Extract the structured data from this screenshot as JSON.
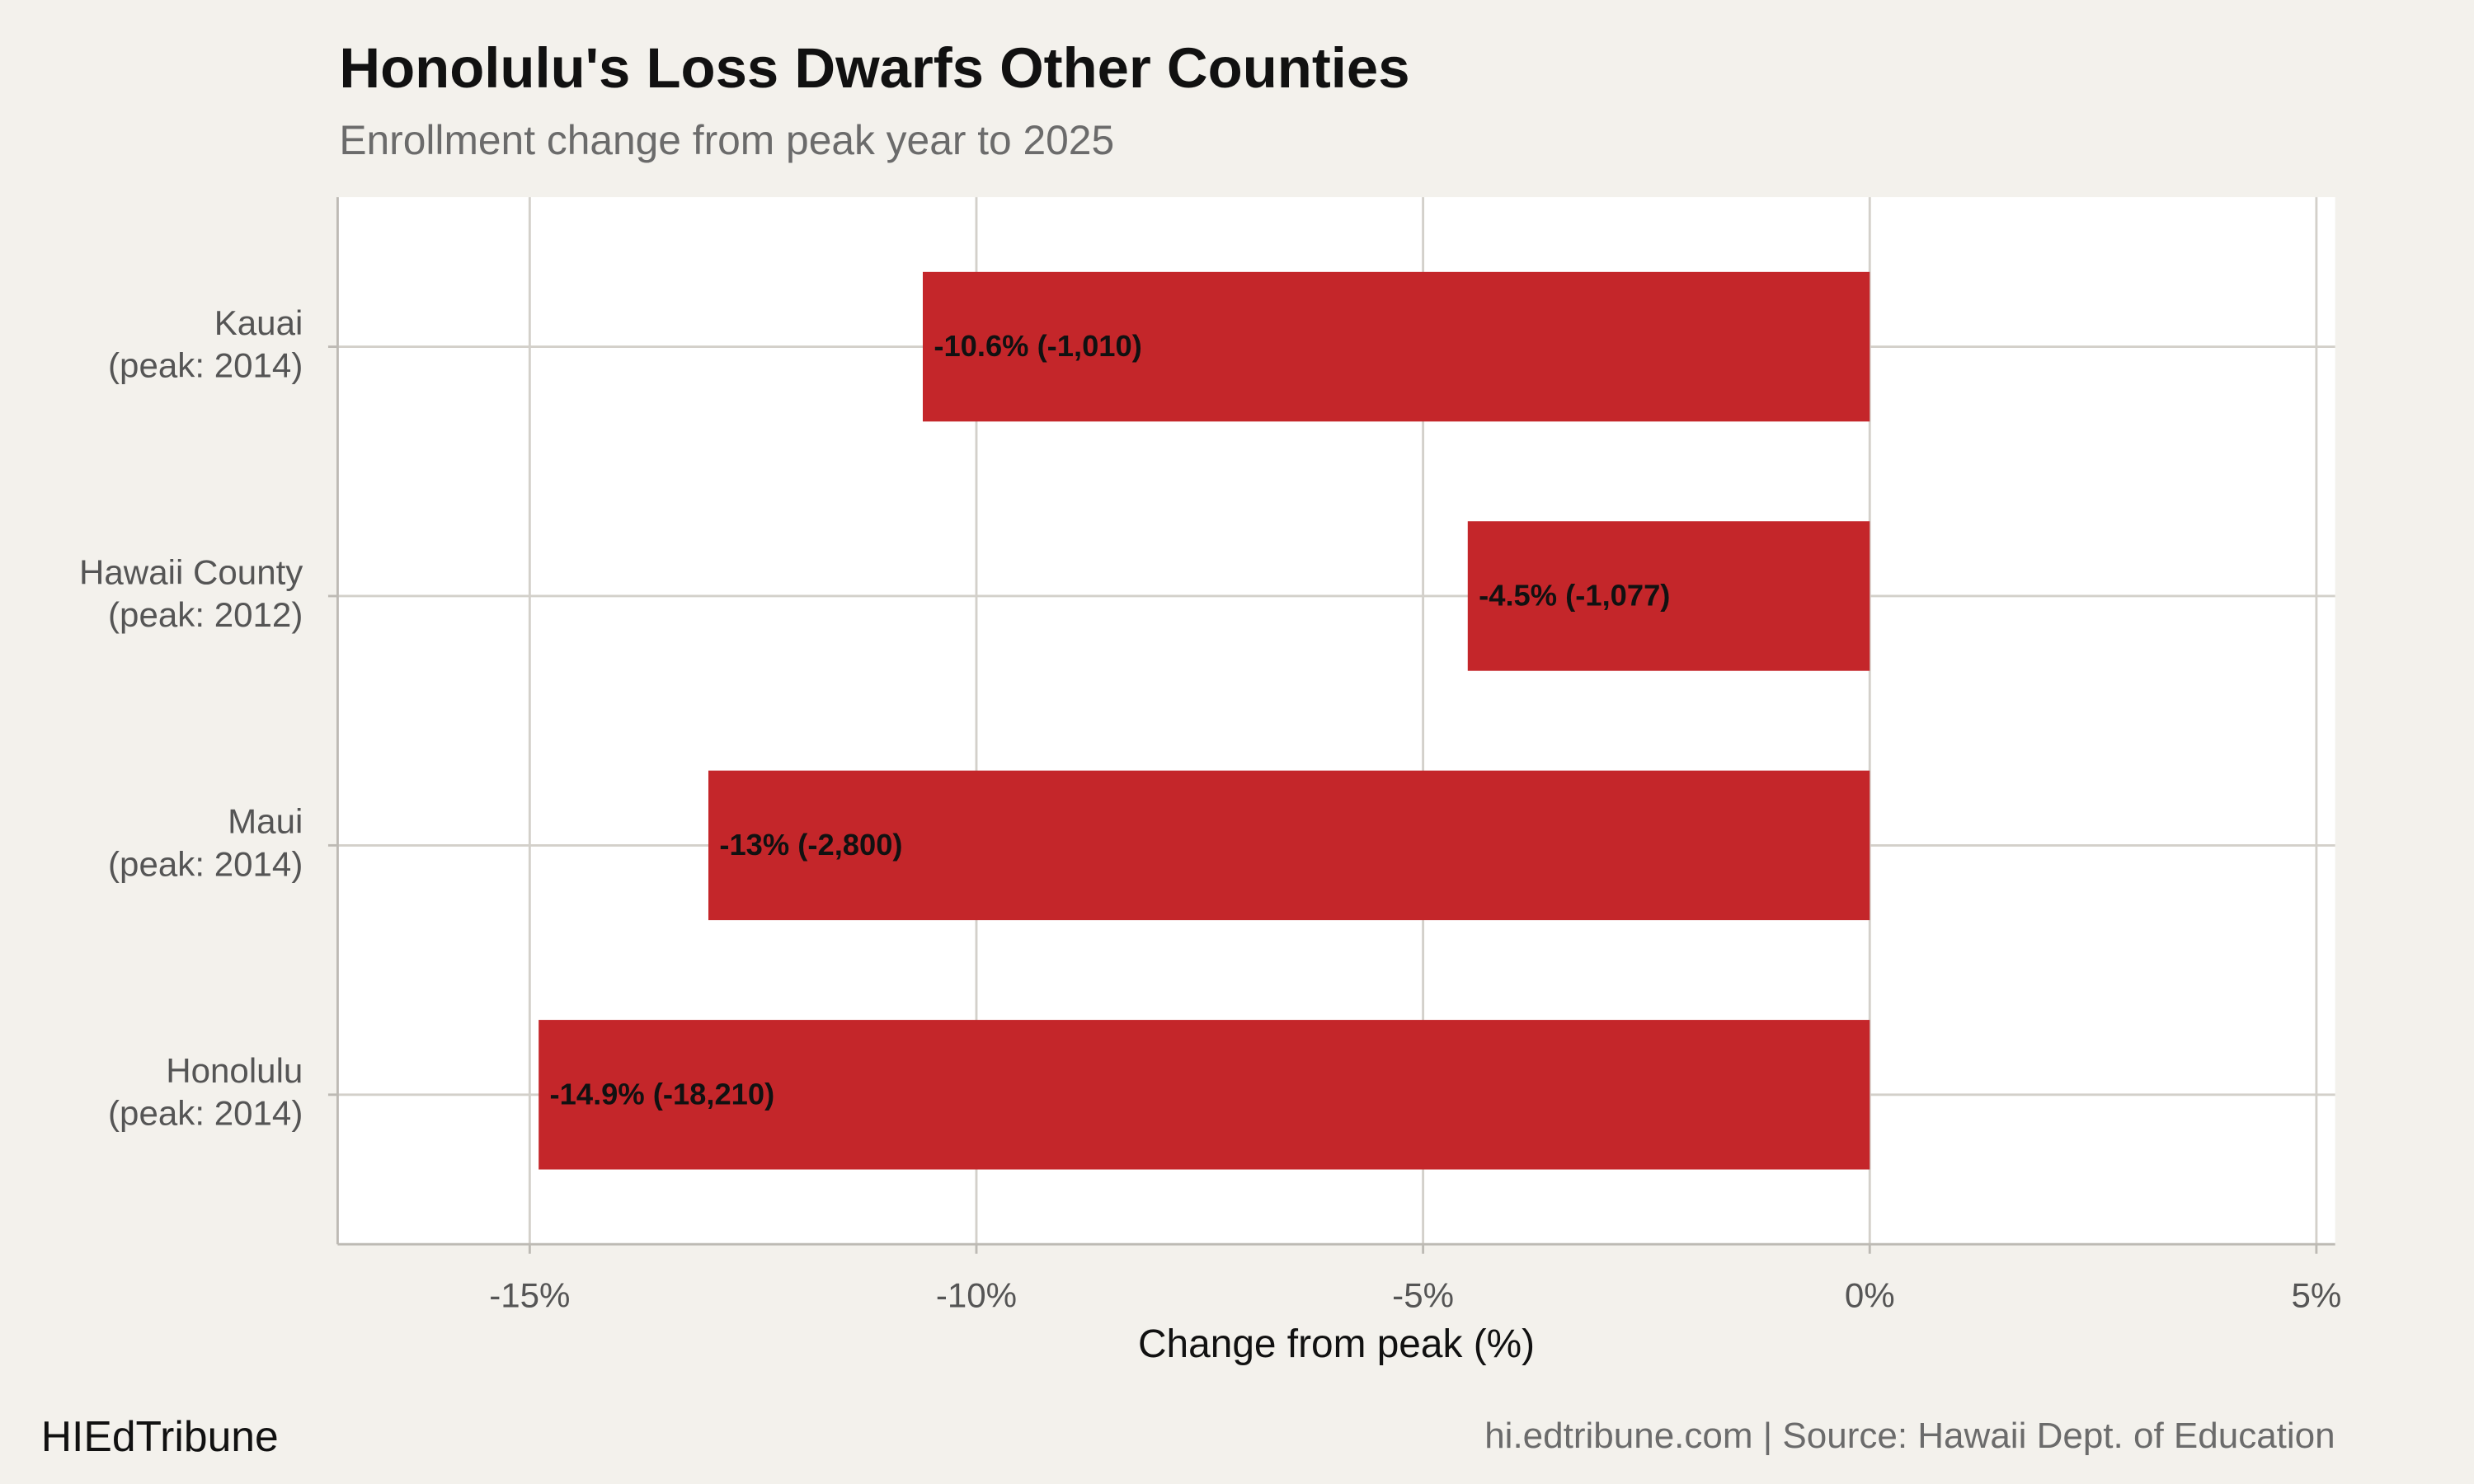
{
  "chart_data": {
    "type": "bar",
    "orientation": "horizontal",
    "title": "Honolulu's Loss Dwarfs Other Counties",
    "subtitle": "Enrollment change from peak year to 2025",
    "xlabel": "Change from peak (%)",
    "categories": [
      [
        "Kauai",
        "(peak: 2014)"
      ],
      [
        "Hawaii County",
        "(peak: 2012)"
      ],
      [
        "Maui",
        "(peak: 2014)"
      ],
      [
        "Honolulu",
        "(peak: 2014)"
      ]
    ],
    "values": [
      -10.6,
      -4.5,
      -13,
      -14.9
    ],
    "value_labels": [
      "-10.6% (-1,010)",
      "-4.5% (-1,077)",
      "-13% (-2,800)",
      "-14.9% (-18,210)"
    ],
    "color": "#c4262a",
    "xlim": [
      -17.15,
      5.21
    ],
    "xticks": [
      {
        "value": -15,
        "label": "-15%"
      },
      {
        "value": -10,
        "label": "-10%"
      },
      {
        "value": -5,
        "label": "-5%"
      },
      {
        "value": 0,
        "label": "0%"
      },
      {
        "value": 5,
        "label": "5%"
      }
    ],
    "grid": true,
    "footer_left": "HIEdTribune",
    "footer_right": "hi.edtribune.com | Source: Hawaii Dept. of Education"
  }
}
